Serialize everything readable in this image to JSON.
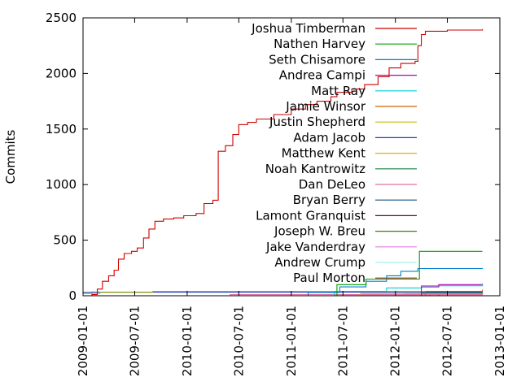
{
  "chart_data": {
    "type": "line",
    "title": "",
    "xlabel": "",
    "ylabel": "Commits",
    "xlim": [
      "2009-01-01",
      "2013-01-01"
    ],
    "ylim": [
      0,
      2500
    ],
    "y_ticks": [
      0,
      500,
      1000,
      1500,
      2000,
      2500
    ],
    "x_ticks": [
      "2009-01-01",
      "2009-07-01",
      "2010-01-01",
      "2010-07-01",
      "2011-01-01",
      "2011-07-01",
      "2012-01-01",
      "2012-07-01",
      "2013-01-01"
    ],
    "grid": false,
    "legend_position": "top-right",
    "step": true,
    "series": [
      {
        "name": "Joshua Timberman",
        "color": "#d00000",
        "points": [
          [
            "2009-01-05",
            0
          ],
          [
            "2009-02-01",
            10
          ],
          [
            "2009-02-20",
            60
          ],
          [
            "2009-03-10",
            130
          ],
          [
            "2009-04-01",
            180
          ],
          [
            "2009-04-20",
            230
          ],
          [
            "2009-05-05",
            330
          ],
          [
            "2009-05-25",
            380
          ],
          [
            "2009-06-20",
            400
          ],
          [
            "2009-07-10",
            430
          ],
          [
            "2009-08-01",
            520
          ],
          [
            "2009-08-20",
            600
          ],
          [
            "2009-09-10",
            670
          ],
          [
            "2009-10-10",
            690
          ],
          [
            "2009-11-15",
            700
          ],
          [
            "2009-12-20",
            720
          ],
          [
            "2010-02-01",
            740
          ],
          [
            "2010-03-01",
            830
          ],
          [
            "2010-04-01",
            860
          ],
          [
            "2010-04-20",
            1300
          ],
          [
            "2010-05-15",
            1350
          ],
          [
            "2010-06-10",
            1450
          ],
          [
            "2010-07-01",
            1540
          ],
          [
            "2010-08-01",
            1560
          ],
          [
            "2010-09-01",
            1590
          ],
          [
            "2010-11-01",
            1630
          ],
          [
            "2011-01-01",
            1680
          ],
          [
            "2011-02-20",
            1720
          ],
          [
            "2011-04-01",
            1750
          ],
          [
            "2011-05-20",
            1790
          ],
          [
            "2011-06-10",
            1830
          ],
          [
            "2011-08-01",
            1860
          ],
          [
            "2011-09-15",
            1900
          ],
          [
            "2011-11-01",
            1970
          ],
          [
            "2011-12-10",
            2050
          ],
          [
            "2012-01-20",
            2090
          ],
          [
            "2012-03-10",
            2110
          ],
          [
            "2012-03-20",
            2250
          ],
          [
            "2012-04-01",
            2350
          ],
          [
            "2012-04-15",
            2380
          ],
          [
            "2012-07-01",
            2390
          ],
          [
            "2012-11-01",
            2400
          ]
        ]
      },
      {
        "name": "Nathen Harvey",
        "color": "#00a000",
        "points": [
          [
            "2011-04-20",
            0
          ],
          [
            "2011-06-10",
            100
          ],
          [
            "2011-09-20",
            150
          ],
          [
            "2012-03-25",
            400
          ],
          [
            "2012-11-01",
            400
          ]
        ]
      },
      {
        "name": "Seth Chisamore",
        "color": "#0080d0",
        "points": [
          [
            "2010-12-10",
            0
          ],
          [
            "2011-03-01",
            30
          ],
          [
            "2011-06-20",
            80
          ],
          [
            "2011-09-20",
            130
          ],
          [
            "2011-12-01",
            180
          ],
          [
            "2012-01-20",
            220
          ],
          [
            "2012-03-20",
            245
          ],
          [
            "2012-11-01",
            250
          ]
        ]
      },
      {
        "name": "Andrea Campi",
        "color": "#b000b0",
        "points": [
          [
            "2012-03-01",
            0
          ],
          [
            "2012-04-01",
            80
          ],
          [
            "2012-06-01",
            100
          ],
          [
            "2012-11-01",
            100
          ]
        ]
      },
      {
        "name": "Matt Ray",
        "color": "#00d0d0",
        "points": [
          [
            "2011-01-01",
            0
          ],
          [
            "2011-06-01",
            40
          ],
          [
            "2011-12-01",
            70
          ],
          [
            "2012-04-01",
            90
          ],
          [
            "2012-11-01",
            110
          ]
        ]
      },
      {
        "name": "Jamie Winsor",
        "color": "#d06000",
        "points": [
          [
            "2011-11-01",
            0
          ],
          [
            "2012-04-15",
            40
          ],
          [
            "2012-11-01",
            55
          ]
        ]
      },
      {
        "name": "Justin Shepherd",
        "color": "#c0c000",
        "points": [
          [
            "2009-01-01",
            20
          ],
          [
            "2009-03-01",
            30
          ],
          [
            "2009-09-01",
            40
          ],
          [
            "2011-06-01",
            40
          ],
          [
            "2012-11-01",
            40
          ]
        ]
      },
      {
        "name": "Adam Jacob",
        "color": "#2040c0",
        "points": [
          [
            "2008-12-01",
            30
          ],
          [
            "2009-02-01",
            32
          ],
          [
            "2012-11-01",
            32
          ]
        ]
      },
      {
        "name": "Matthew Kent",
        "color": "#e0b000",
        "points": [
          [
            "2010-09-01",
            0
          ],
          [
            "2011-09-01",
            20
          ],
          [
            "2012-11-01",
            22
          ]
        ]
      },
      {
        "name": "Noah Kantrowitz",
        "color": "#108040",
        "points": [
          [
            "2012-01-01",
            0
          ],
          [
            "2012-04-01",
            25
          ],
          [
            "2012-11-01",
            35
          ]
        ]
      },
      {
        "name": "Dan DeLeo",
        "color": "#e070a0",
        "points": [
          [
            "2009-06-01",
            0
          ],
          [
            "2010-06-01",
            10
          ],
          [
            "2012-11-01",
            15
          ]
        ]
      },
      {
        "name": "Bryan Berry",
        "color": "#105080",
        "points": [
          [
            "2012-02-01",
            0
          ],
          [
            "2012-04-01",
            20
          ],
          [
            "2012-11-01",
            25
          ]
        ]
      },
      {
        "name": "Lamont Granquist",
        "color": "#601020",
        "points": [
          [
            "2012-03-01",
            0
          ],
          [
            "2012-06-01",
            15
          ],
          [
            "2012-11-01",
            20
          ]
        ]
      },
      {
        "name": "Joseph W. Breu",
        "color": "#408000",
        "points": [
          [
            "2012-01-01",
            0
          ],
          [
            "2012-05-01",
            30
          ],
          [
            "2012-11-01",
            30
          ]
        ]
      },
      {
        "name": "Jake Vanderdray",
        "color": "#e080e0",
        "points": [
          [
            "2011-06-01",
            0
          ],
          [
            "2011-09-01",
            10
          ],
          [
            "2012-11-01",
            10
          ]
        ]
      },
      {
        "name": "Andrew Crump",
        "color": "#a0f0f0",
        "points": [
          [
            "2011-03-01",
            0
          ],
          [
            "2011-06-01",
            8
          ],
          [
            "2012-11-01",
            8
          ]
        ]
      },
      {
        "name": "Paul Morton",
        "color": "#a03020",
        "points": [
          [
            "2011-10-01",
            0
          ],
          [
            "2012-02-01",
            15
          ],
          [
            "2012-11-01",
            15
          ]
        ]
      }
    ]
  }
}
